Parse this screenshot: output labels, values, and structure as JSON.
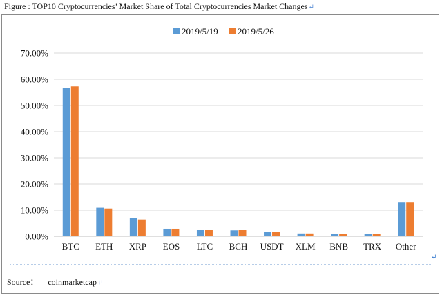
{
  "caption": "Figure : TOP10 Cryptocurrencies’ Market Share of Total Cryptocurrencies Market Changes",
  "source": {
    "label": "Source：",
    "value": "coinmarketcap"
  },
  "colors": {
    "series1": "#5b9bd5",
    "series2": "#ed7d31",
    "grid": "#d9d9d9",
    "axis": "#bfbfbf",
    "frame": "#8a8a8a"
  },
  "chart_data": {
    "type": "bar",
    "title": "",
    "xlabel": "",
    "ylabel": "",
    "categories": [
      "BTC",
      "ETH",
      "XRP",
      "EOS",
      "LTC",
      "BCH",
      "USDT",
      "XLM",
      "BNB",
      "TRX",
      "Other"
    ],
    "series": [
      {
        "name": "2019/5/19",
        "color": "#5b9bd5",
        "values": [
          56.8,
          10.9,
          7.0,
          2.9,
          2.4,
          2.3,
          1.6,
          1.1,
          1.0,
          0.8,
          13.1
        ]
      },
      {
        "name": "2019/5/26",
        "color": "#ed7d31",
        "values": [
          57.3,
          10.6,
          6.4,
          2.9,
          2.6,
          2.4,
          1.7,
          1.1,
          1.0,
          0.8,
          13.1
        ]
      }
    ],
    "yticks": [
      "0.00%",
      "10.00%",
      "20.00%",
      "30.00%",
      "40.00%",
      "50.00%",
      "60.00%",
      "70.00%"
    ],
    "ylim": [
      0,
      70
    ],
    "grid": true,
    "legend": "top-center"
  }
}
